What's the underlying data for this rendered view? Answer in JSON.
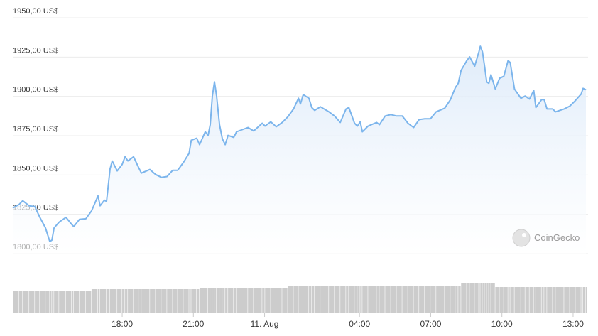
{
  "chart_data": {
    "type": "line",
    "x": [
      13.39,
      13.66,
      13.81,
      14.08,
      14.32,
      14.53,
      14.77,
      14.95,
      15.04,
      15.13,
      15.34,
      15.63,
      15.87,
      15.96,
      16.2,
      16.47,
      16.71,
      16.98,
      17.07,
      17.25,
      17.34,
      17.49,
      17.58,
      17.79,
      18.0,
      18.12,
      18.24,
      18.48,
      18.69,
      18.81,
      19.17,
      19.41,
      19.65,
      19.89,
      20.13,
      20.34,
      20.58,
      20.82,
      20.91,
      21.14,
      21.26,
      21.5,
      21.62,
      21.71,
      21.8,
      21.89,
      21.98,
      22.1,
      22.22,
      22.34,
      22.46,
      22.7,
      22.82,
      23.3,
      23.54,
      23.9,
      24.02,
      24.26,
      24.49,
      24.74,
      24.98,
      25.22,
      25.43,
      25.51,
      25.63,
      25.87,
      25.99,
      26.11,
      26.35,
      26.71,
      26.95,
      27.19,
      27.43,
      27.55,
      27.79,
      27.91,
      28.03,
      28.12,
      28.36,
      28.72,
      28.84,
      29.08,
      29.32,
      29.56,
      29.8,
      30.04,
      30.28,
      30.51,
      30.75,
      30.99,
      31.23,
      31.59,
      31.83,
      32.04,
      32.16,
      32.28,
      32.52,
      32.64,
      32.85,
      33.03,
      33.09,
      33.18,
      33.27,
      33.36,
      33.45,
      33.54,
      33.72,
      33.9,
      34.08,
      34.26,
      34.35,
      34.53,
      34.8,
      34.98,
      35.16,
      35.34,
      35.43,
      35.67,
      35.78,
      35.9,
      36.14,
      36.26,
      36.62,
      36.86,
      37.1,
      37.34,
      37.42,
      37.54
    ],
    "series": [
      {
        "color": "#7cb5ec",
        "values": [
          1829.0,
          1831.3,
          1833.6,
          1830.4,
          1829.9,
          1823.1,
          1816.3,
          1807.7,
          1808.6,
          1816.3,
          1820.0,
          1823.1,
          1818.6,
          1817.2,
          1821.8,
          1822.2,
          1827.2,
          1836.7,
          1830.4,
          1834.0,
          1833.1,
          1853.9,
          1858.9,
          1852.6,
          1856.7,
          1861.6,
          1858.9,
          1861.6,
          1854.8,
          1851.2,
          1853.5,
          1850.3,
          1848.5,
          1849.0,
          1853.0,
          1853.0,
          1858.0,
          1863.9,
          1872.1,
          1873.4,
          1869.3,
          1877.5,
          1875.2,
          1882.0,
          1900.2,
          1909.2,
          1900.2,
          1882.0,
          1873.0,
          1869.3,
          1875.2,
          1873.9,
          1877.5,
          1880.2,
          1878.0,
          1882.9,
          1881.1,
          1883.8,
          1880.7,
          1883.4,
          1887.0,
          1892.0,
          1898.8,
          1895.2,
          1901.1,
          1898.8,
          1892.9,
          1891.1,
          1893.4,
          1890.2,
          1887.5,
          1883.4,
          1892.0,
          1892.9,
          1882.9,
          1881.1,
          1883.8,
          1877.5,
          1881.1,
          1883.4,
          1882.0,
          1887.5,
          1888.4,
          1887.5,
          1887.5,
          1882.9,
          1880.2,
          1885.2,
          1885.7,
          1885.7,
          1890.2,
          1892.5,
          1897.9,
          1905.6,
          1908.3,
          1916.5,
          1922.8,
          1925.1,
          1919.2,
          1928.3,
          1931.9,
          1928.3,
          1919.2,
          1909.2,
          1908.3,
          1913.8,
          1904.7,
          1911.5,
          1912.8,
          1922.8,
          1921.5,
          1904.7,
          1898.8,
          1900.2,
          1898.3,
          1903.8,
          1892.9,
          1897.9,
          1897.9,
          1892.0,
          1892.0,
          1890.2,
          1892.0,
          1893.8,
          1897.4,
          1901.5,
          1905.1,
          1904.2
        ]
      }
    ],
    "volume": {
      "color": "#cccccc",
      "values": [
        32,
        32,
        32,
        32,
        32,
        32,
        32,
        32,
        32,
        32,
        32,
        32,
        32,
        32,
        32,
        32,
        34,
        34,
        34,
        34,
        34,
        34,
        34,
        34,
        34,
        34,
        34,
        34,
        34,
        34,
        34,
        34,
        34,
        34,
        34,
        34,
        34,
        34,
        34,
        34,
        36,
        36,
        36,
        36,
        36,
        36,
        36,
        36,
        36,
        36,
        36,
        36,
        36,
        36,
        36,
        36,
        36,
        36,
        36,
        36,
        39,
        39,
        39,
        39,
        39,
        39,
        39,
        39,
        39,
        39,
        39,
        39,
        39,
        39,
        39,
        39,
        39,
        39,
        39,
        39,
        39,
        39,
        39,
        39,
        39,
        39,
        39,
        39,
        39,
        39,
        39,
        39,
        39,
        39,
        39,
        42,
        42,
        42,
        42,
        42,
        42,
        42,
        42,
        42,
        42,
        42,
        37,
        37,
        37,
        37,
        37,
        37,
        37,
        37,
        37,
        37,
        37,
        37,
        37,
        37,
        37,
        37,
        37,
        37,
        37,
        37,
        37,
        37
      ]
    },
    "xlim": [
      13.39,
      37.54
    ],
    "xticks": [
      {
        "value": 18,
        "label": "18:00"
      },
      {
        "value": 21,
        "label": "21:00"
      },
      {
        "value": 24,
        "label": "11. Aug"
      },
      {
        "value": 28,
        "label": "04:00"
      },
      {
        "value": 31,
        "label": "07:00"
      },
      {
        "value": 34,
        "label": "10:00"
      },
      {
        "value": 37,
        "label": "13:00"
      }
    ],
    "ylim": [
      1800,
      1950
    ],
    "yticks": [
      {
        "value": 1800,
        "label": "1800,00 US$"
      },
      {
        "value": 1825,
        "label": "1825,00 US$"
      },
      {
        "value": 1850,
        "label": "1850,00 US$"
      },
      {
        "value": 1875,
        "label": "1875,00 US$"
      },
      {
        "value": 1900,
        "label": "1900,00 US$"
      },
      {
        "value": 1925,
        "label": "1925,00 US$"
      },
      {
        "value": 1950,
        "label": "1950,00 US$"
      }
    ],
    "y2lim": [
      0,
      45
    ],
    "grid": true,
    "watermark": "CoinGecko"
  }
}
